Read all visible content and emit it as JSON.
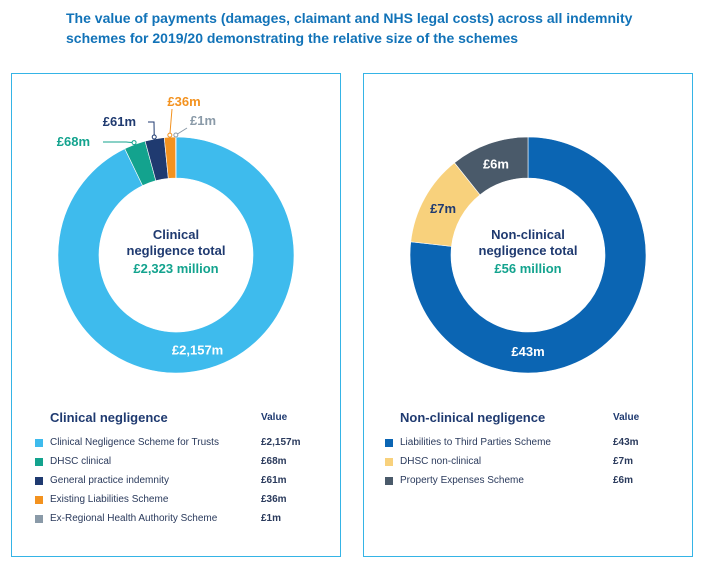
{
  "title": "The value of payments (damages, claimant and NHS legal costs) across all indemnity schemes for 2019/20 demonstrating the relative size of the schemes",
  "chart_data": [
    {
      "type": "pie",
      "center_line1": "Clinical",
      "center_line2": "negligence total",
      "center_total": "£2,323 million",
      "legend_title": "Clinical negligence",
      "value_header": "Value",
      "slices": [
        {
          "name": "Clinical Negligence Scheme for Trusts",
          "value": 2157,
          "label": "£2,157m",
          "color": "#3ebbed"
        },
        {
          "name": "DHSC clinical",
          "value": 68,
          "label": "£68m",
          "color": "#13a38e"
        },
        {
          "name": "General practice indemnity",
          "value": 61,
          "label": "£61m",
          "color": "#1f3a70"
        },
        {
          "name": "Existing Liabilities Scheme",
          "value": 36,
          "label": "£36m",
          "color": "#f3921f"
        },
        {
          "name": "Ex-Regional Health Authority Scheme",
          "value": 1,
          "label": "£1m",
          "color": "#8a9aa8"
        }
      ]
    },
    {
      "type": "pie",
      "center_line1": "Non-clinical",
      "center_line2": "negligence total",
      "center_total": "£56 million",
      "legend_title": "Non-clinical negligence",
      "value_header": "Value",
      "slices": [
        {
          "name": "Liabilities to Third Parties Scheme",
          "value": 43,
          "label": "£43m",
          "color": "#0b65b3"
        },
        {
          "name": "DHSC non-clinical",
          "value": 7,
          "label": "£7m",
          "color": "#f8d17c"
        },
        {
          "name": "Property Expenses Scheme",
          "value": 6,
          "label": "£6m",
          "color": "#4a5a6a"
        }
      ]
    }
  ]
}
